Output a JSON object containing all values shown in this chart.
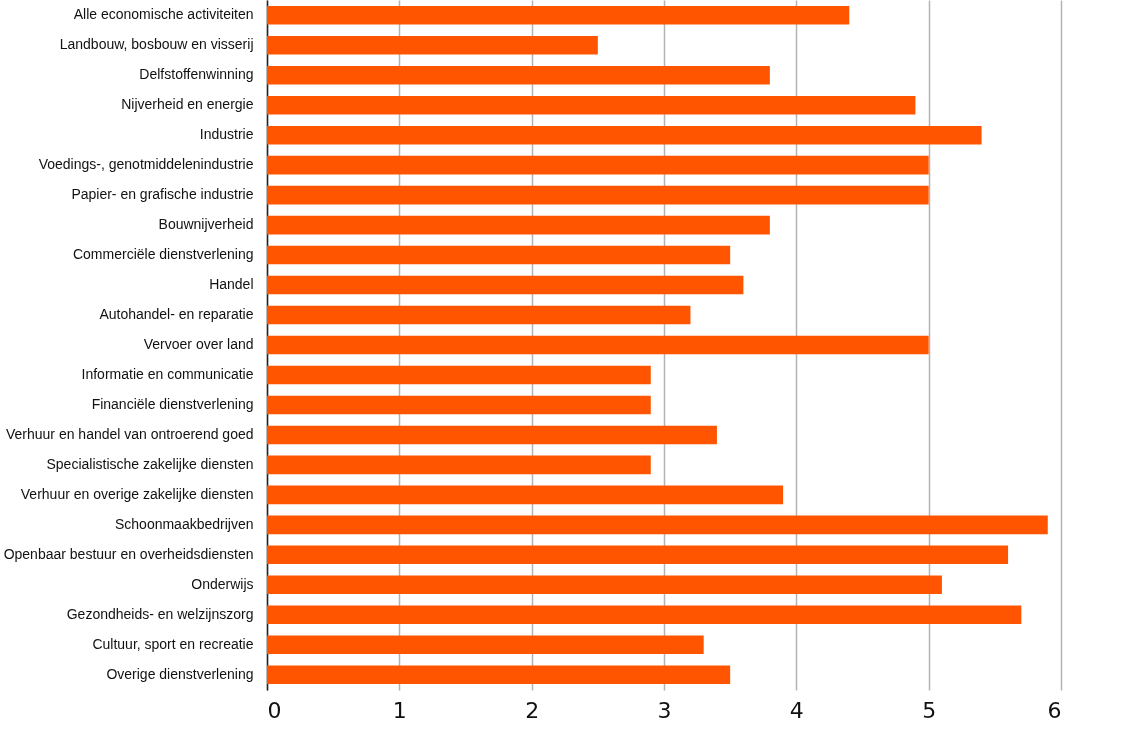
{
  "chart_data": {
    "type": "bar",
    "orientation": "horizontal",
    "categories": [
      "Alle economische activiteiten",
      "Landbouw, bosbouw en visserij",
      "Delfstoffenwinning",
      "Nijverheid en energie",
      "Industrie",
      "Voedings-, genotmiddelenindustrie",
      "Papier- en grafische industrie",
      "Bouwnijverheid",
      "Commerciële dienstverlening",
      "Handel",
      "Autohandel- en reparatie",
      "Vervoer over land",
      "Informatie en communicatie",
      "Financiële dienstverlening",
      "Verhuur en handel van ontroerend goed",
      "Specialistische zakelijke diensten",
      "Verhuur en overige zakelijke diensten",
      "Schoonmaakbedrijven",
      "Openbaar bestuur en overheidsdiensten",
      "Onderwijs",
      "Gezondheids- en welzijnszorg",
      "Cultuur, sport en recreatie",
      "Overige dienstverlening"
    ],
    "values": [
      4.4,
      2.5,
      3.8,
      4.9,
      5.4,
      5.0,
      5.0,
      3.8,
      3.5,
      3.6,
      3.2,
      5.0,
      2.9,
      2.9,
      3.4,
      2.9,
      3.9,
      5.9,
      5.6,
      5.1,
      5.7,
      3.3,
      3.5
    ],
    "color": "#ff5500",
    "xlim": [
      0,
      6
    ],
    "xticks": [
      0,
      1,
      2,
      3,
      4,
      5,
      6
    ],
    "grid": "x"
  }
}
